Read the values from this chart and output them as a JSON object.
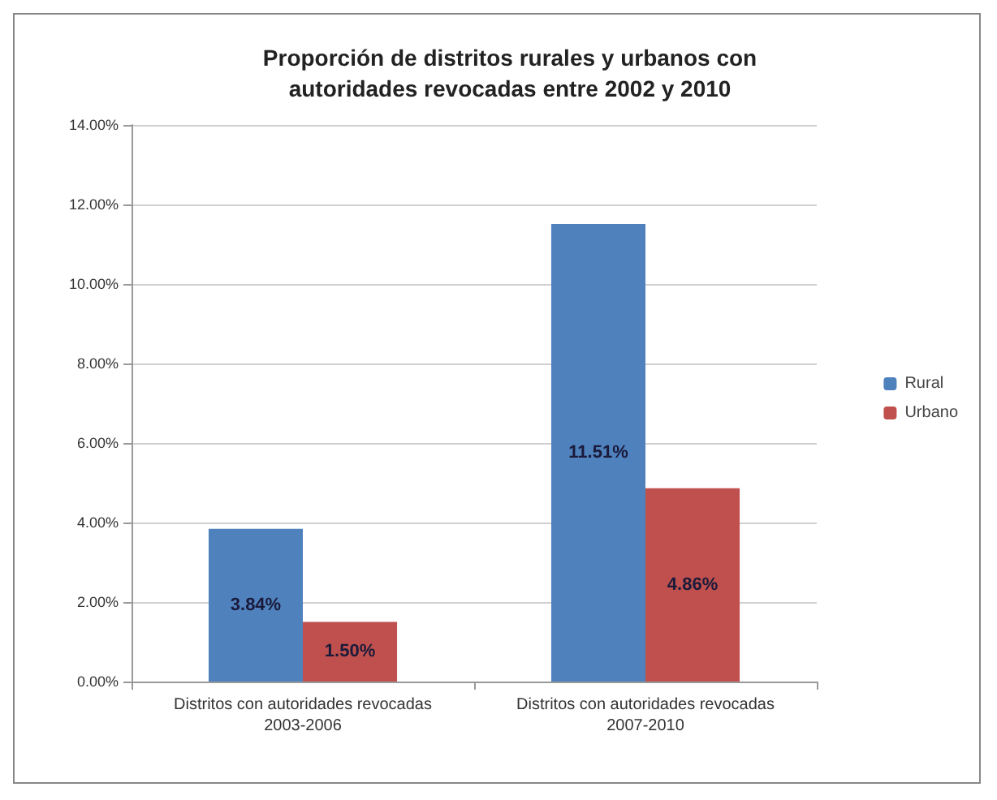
{
  "chart_data": {
    "type": "bar",
    "title": "Proporción de distritos rurales y urbanos con\nautoridades revocadas entre 2002 y 2010",
    "categories": [
      "Distritos con autoridades revocadas\n2003-2006",
      "Distritos con autoridades revocadas\n2007-2010"
    ],
    "series": [
      {
        "name": "Rural",
        "color": "#4f81bd",
        "values": [
          3.84,
          11.51
        ],
        "value_labels": [
          "3.84%",
          "11.51%"
        ]
      },
      {
        "name": "Urbano",
        "color": "#c0504d",
        "values": [
          1.5,
          4.86
        ],
        "value_labels": [
          "1.50%",
          "4.86%"
        ]
      }
    ],
    "ylim": [
      0,
      14
    ],
    "yticks": [
      {
        "value": 0,
        "label": "0.00%"
      },
      {
        "value": 2,
        "label": "2.00%"
      },
      {
        "value": 4,
        "label": "4.00%"
      },
      {
        "value": 6,
        "label": "6.00%"
      },
      {
        "value": 8,
        "label": "8.00%"
      },
      {
        "value": 10,
        "label": "10.00%"
      },
      {
        "value": 12,
        "label": "12.00%"
      },
      {
        "value": 14,
        "label": "14.00%"
      }
    ],
    "grid": "y",
    "legend": "right"
  }
}
